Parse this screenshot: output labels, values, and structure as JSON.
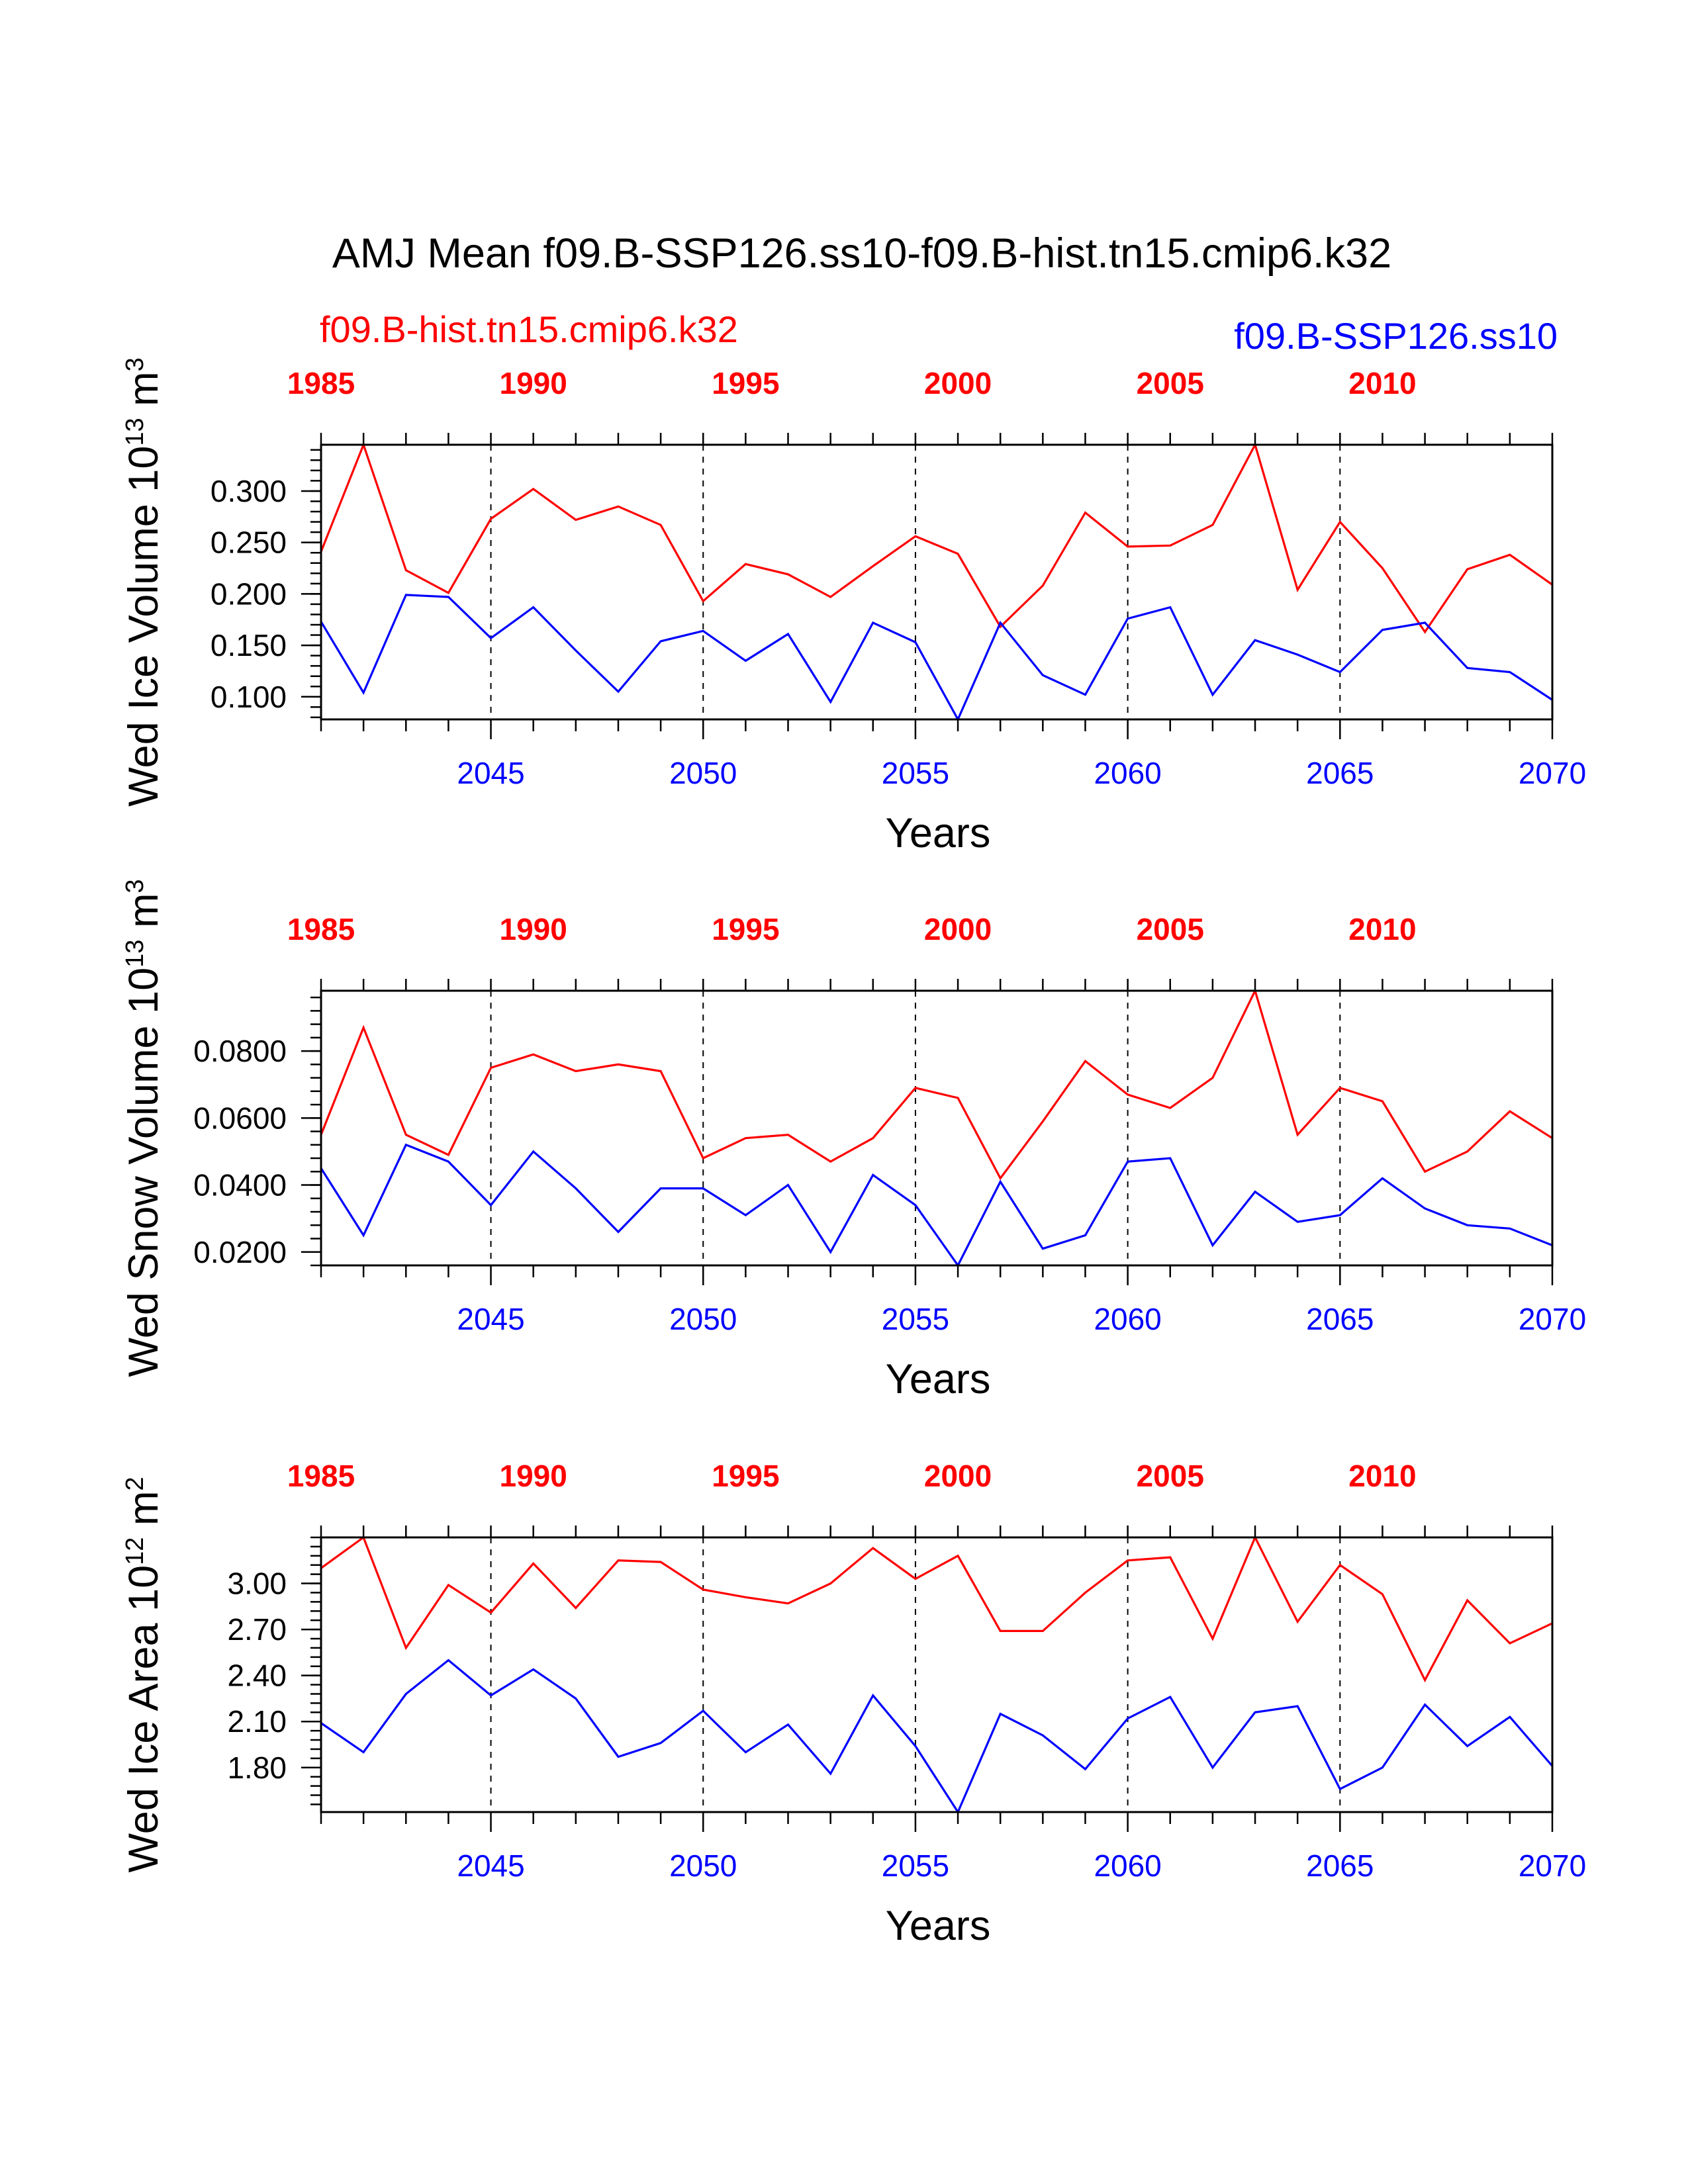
{
  "title": "AMJ Mean f09.B-SSP126.ss10-f09.B-hist.tn15.cmip6.k32",
  "colors": {
    "hist": "#ff0000",
    "ssp": "#0000ff",
    "axis": "#000000"
  },
  "legend": {
    "hist": "f09.B-hist.tn15.cmip6.k32",
    "ssp": "f09.B-SSP126.ss10"
  },
  "chart_data": [
    {
      "type": "line",
      "ylabel": "Wed Ice Volume 10",
      "yunit_exp": "13",
      "yunit_tail": " m",
      "yunit_pow": "3",
      "xlabel": "Years",
      "ylim": [
        0.078,
        0.345
      ],
      "yticks": [
        0.1,
        0.15,
        0.2,
        0.25,
        0.3
      ],
      "yticklabels": [
        "0.100",
        "0.150",
        "0.200",
        "0.250",
        "0.300"
      ],
      "yminor_step": 0.01,
      "x_bottom": [
        2041,
        2042,
        2043,
        2044,
        2045,
        2046,
        2047,
        2048,
        2049,
        2050,
        2051,
        2052,
        2053,
        2054,
        2055,
        2056,
        2057,
        2058,
        2059,
        2060,
        2061,
        2062,
        2063,
        2064,
        2065,
        2066,
        2067,
        2068,
        2069,
        2070
      ],
      "x_top": [
        1985,
        1986,
        1987,
        1988,
        1989,
        1990,
        1991,
        1992,
        1993,
        1994,
        1995,
        1996,
        1997,
        1998,
        1999,
        2000,
        2001,
        2002,
        2003,
        2004,
        2005,
        2006,
        2007,
        2008,
        2009,
        2010,
        2011,
        2012,
        2013,
        2014
      ],
      "x_bottom_ticklabels": [
        "2045",
        "2050",
        "2055",
        "2060",
        "2065",
        "2070"
      ],
      "x_top_ticklabels": [
        "1985",
        "1990",
        "1995",
        "2000",
        "2005",
        "2010"
      ],
      "series": [
        {
          "name": "f09.B-hist.tn15.cmip6.k32",
          "key": "hist",
          "values": [
            0.241,
            0.345,
            0.223,
            0.201,
            0.273,
            0.302,
            0.272,
            0.285,
            0.267,
            0.193,
            0.229,
            0.219,
            0.197,
            0.227,
            0.256,
            0.239,
            0.168,
            0.208,
            0.279,
            0.246,
            0.247,
            0.267,
            0.345,
            0.204,
            0.27,
            0.225,
            0.163,
            0.224,
            0.238,
            0.209
          ]
        },
        {
          "name": "f09.B-SSP126.ss10",
          "key": "ssp",
          "values": [
            0.173,
            0.104,
            0.199,
            0.197,
            0.157,
            0.187,
            0.145,
            0.105,
            0.154,
            0.164,
            0.135,
            0.161,
            0.095,
            0.172,
            0.153,
            0.078,
            0.172,
            0.121,
            0.102,
            0.176,
            0.187,
            0.102,
            0.155,
            0.141,
            0.124,
            0.165,
            0.172,
            0.128,
            0.124,
            0.097
          ]
        }
      ]
    },
    {
      "type": "line",
      "ylabel": "Wed Snow Volume 10",
      "yunit_exp": "13",
      "yunit_tail": " m",
      "yunit_pow": "3",
      "xlabel": "Years",
      "ylim": [
        0.016,
        0.098
      ],
      "yticks": [
        0.02,
        0.04,
        0.06,
        0.08
      ],
      "yticklabels": [
        "0.0200",
        "0.0400",
        "0.0600",
        "0.0800"
      ],
      "yminor_step": 0.004,
      "x_bottom": [
        2041,
        2042,
        2043,
        2044,
        2045,
        2046,
        2047,
        2048,
        2049,
        2050,
        2051,
        2052,
        2053,
        2054,
        2055,
        2056,
        2057,
        2058,
        2059,
        2060,
        2061,
        2062,
        2063,
        2064,
        2065,
        2066,
        2067,
        2068,
        2069,
        2070
      ],
      "x_top": [
        1985,
        1986,
        1987,
        1988,
        1989,
        1990,
        1991,
        1992,
        1993,
        1994,
        1995,
        1996,
        1997,
        1998,
        1999,
        2000,
        2001,
        2002,
        2003,
        2004,
        2005,
        2006,
        2007,
        2008,
        2009,
        2010,
        2011,
        2012,
        2013,
        2014
      ],
      "x_bottom_ticklabels": [
        "2045",
        "2050",
        "2055",
        "2060",
        "2065",
        "2070"
      ],
      "x_top_ticklabels": [
        "1985",
        "1990",
        "1995",
        "2000",
        "2005",
        "2010"
      ],
      "series": [
        {
          "name": "f09.B-hist.tn15.cmip6.k32",
          "key": "hist",
          "values": [
            0.055,
            0.087,
            0.055,
            0.049,
            0.075,
            0.079,
            0.074,
            0.076,
            0.074,
            0.048,
            0.054,
            0.055,
            0.047,
            0.054,
            0.069,
            0.066,
            0.042,
            0.059,
            0.077,
            0.067,
            0.063,
            0.072,
            0.098,
            0.055,
            0.069,
            0.065,
            0.044,
            0.05,
            0.062,
            0.054
          ]
        },
        {
          "name": "f09.B-SSP126.ss10",
          "key": "ssp",
          "values": [
            0.045,
            0.025,
            0.052,
            0.047,
            0.034,
            0.05,
            0.039,
            0.026,
            0.039,
            0.039,
            0.031,
            0.04,
            0.02,
            0.043,
            0.034,
            0.016,
            0.041,
            0.021,
            0.025,
            0.047,
            0.048,
            0.022,
            0.038,
            0.029,
            0.031,
            0.042,
            0.033,
            0.028,
            0.027,
            0.022
          ]
        }
      ]
    },
    {
      "type": "line",
      "ylabel": "Wed Ice Area 10",
      "yunit_exp": "12",
      "yunit_tail": " m",
      "yunit_pow": "2",
      "xlabel": "Years",
      "ylim": [
        1.51,
        3.3
      ],
      "yticks": [
        1.8,
        2.1,
        2.4,
        2.7,
        3.0
      ],
      "yticklabels": [
        "1.80",
        "2.10",
        "2.40",
        "2.70",
        "3.00"
      ],
      "yminor_step": 0.06,
      "x_bottom": [
        2041,
        2042,
        2043,
        2044,
        2045,
        2046,
        2047,
        2048,
        2049,
        2050,
        2051,
        2052,
        2053,
        2054,
        2055,
        2056,
        2057,
        2058,
        2059,
        2060,
        2061,
        2062,
        2063,
        2064,
        2065,
        2066,
        2067,
        2068,
        2069,
        2070
      ],
      "x_top": [
        1985,
        1986,
        1987,
        1988,
        1989,
        1990,
        1991,
        1992,
        1993,
        1994,
        1995,
        1996,
        1997,
        1998,
        1999,
        2000,
        2001,
        2002,
        2003,
        2004,
        2005,
        2006,
        2007,
        2008,
        2009,
        2010,
        2011,
        2012,
        2013,
        2014
      ],
      "x_bottom_ticklabels": [
        "2045",
        "2050",
        "2055",
        "2060",
        "2065",
        "2070"
      ],
      "x_top_ticklabels": [
        "1985",
        "1990",
        "1995",
        "2000",
        "2005",
        "2010"
      ],
      "series": [
        {
          "name": "f09.B-hist.tn15.cmip6.k32",
          "key": "hist",
          "values": [
            3.1,
            3.3,
            2.58,
            2.99,
            2.81,
            3.13,
            2.84,
            3.15,
            3.14,
            2.96,
            2.91,
            2.87,
            3.0,
            3.23,
            3.03,
            3.18,
            2.69,
            2.69,
            2.94,
            3.15,
            3.17,
            2.64,
            3.3,
            2.75,
            3.12,
            2.93,
            2.37,
            2.89,
            2.61,
            2.74
          ]
        },
        {
          "name": "f09.B-SSP126.ss10",
          "key": "ssp",
          "values": [
            2.09,
            1.9,
            2.28,
            2.5,
            2.27,
            2.44,
            2.25,
            1.87,
            1.96,
            2.17,
            1.9,
            2.08,
            1.76,
            2.27,
            1.94,
            1.51,
            2.15,
            2.01,
            1.79,
            2.12,
            2.26,
            1.8,
            2.16,
            2.2,
            1.66,
            1.8,
            2.21,
            1.94,
            2.13,
            1.81
          ]
        }
      ]
    }
  ]
}
